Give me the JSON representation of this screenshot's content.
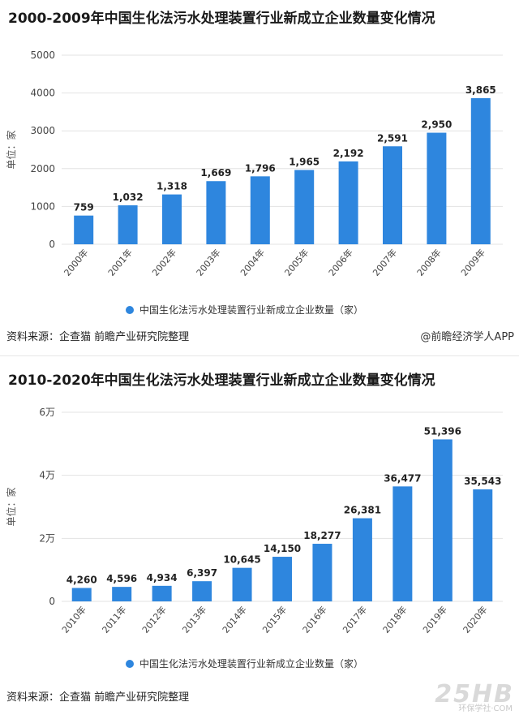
{
  "chart_data": [
    {
      "type": "bar",
      "title": "2000-2009年中国生化法污水处理装置行业新成立企业数量变化情况",
      "ylabel": "单位：家",
      "categories": [
        "2000年",
        "2001年",
        "2002年",
        "2003年",
        "2004年",
        "2005年",
        "2006年",
        "2007年",
        "2008年",
        "2009年"
      ],
      "series": [
        {
          "name": "中国生化法污水处理装置行业新成立企业数量（家）",
          "values": [
            759,
            1032,
            1318,
            1669,
            1796,
            1965,
            2192,
            2591,
            2950,
            3865
          ]
        }
      ],
      "value_labels": [
        "759",
        "1,032",
        "1,318",
        "1,669",
        "1,796",
        "1,965",
        "2,192",
        "2,591",
        "2,950",
        "3,865"
      ],
      "yticks": [
        0,
        1000,
        2000,
        3000,
        4000,
        5000
      ],
      "ytick_labels": [
        "0",
        "1000",
        "2000",
        "3000",
        "4000",
        "5000"
      ],
      "ylim": [
        0,
        5000
      ],
      "grid": true,
      "legend": "bottom-center",
      "color": "#2e86de"
    },
    {
      "type": "bar",
      "title": "2010-2020年中国生化法污水处理装置行业新成立企业数量变化情况",
      "ylabel": "单位：家",
      "categories": [
        "2010年",
        "2011年",
        "2012年",
        "2013年",
        "2014年",
        "2015年",
        "2016年",
        "2017年",
        "2018年",
        "2019年",
        "2020年"
      ],
      "series": [
        {
          "name": "中国生化法污水处理装置行业新成立企业数量（家）",
          "values": [
            4260,
            4596,
            4934,
            6397,
            10645,
            14150,
            18277,
            26381,
            36477,
            51396,
            35543
          ]
        }
      ],
      "value_labels": [
        "4,260",
        "4,596",
        "4,934",
        "6,397",
        "10,645",
        "14,150",
        "18,277",
        "26,381",
        "36,477",
        "51,396",
        "35,543"
      ],
      "yticks": [
        0,
        20000,
        40000,
        60000
      ],
      "ytick_labels": [
        "0",
        "2万",
        "4万",
        "6万"
      ],
      "ylim": [
        0,
        60000
      ],
      "grid": true,
      "legend": "bottom-center",
      "color": "#2e86de"
    }
  ],
  "footer": {
    "source": "资料来源：企查猫 前瞻产业研究院整理",
    "credit1": "@前瞻经济学人APP",
    "credit2": "@前瞻经济学人APP"
  },
  "watermark": {
    "text": "25HB",
    "sub": "环保学社·COM"
  }
}
